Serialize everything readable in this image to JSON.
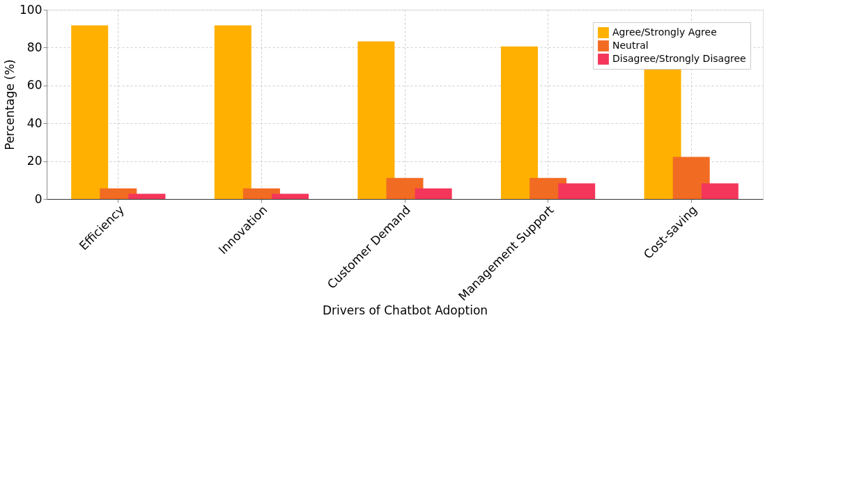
{
  "chart_data": {
    "type": "bar",
    "xlabel": "Drivers of Chatbot Adoption",
    "ylabel": "Percentage (%)",
    "categories": [
      "Efficiency",
      "Innovation",
      "Customer Demand",
      "Management Support",
      "Cost-saving"
    ],
    "series": [
      {
        "name": "Agree/Strongly Agree",
        "color": "#ffb000",
        "values": [
          91.7,
          91.7,
          83.3,
          80.6,
          69.4
        ]
      },
      {
        "name": "Neutral",
        "color": "#f26b22",
        "values": [
          5.6,
          5.6,
          11.1,
          11.1,
          22.2
        ]
      },
      {
        "name": "Disagree/Strongly Disagree",
        "color": "#f4365a",
        "values": [
          2.8,
          2.8,
          5.6,
          8.3,
          8.3
        ]
      }
    ],
    "ylim": [
      0,
      100
    ],
    "yticks": [
      0,
      20,
      40,
      60,
      80,
      100
    ],
    "grid": true,
    "legend": "top right"
  }
}
